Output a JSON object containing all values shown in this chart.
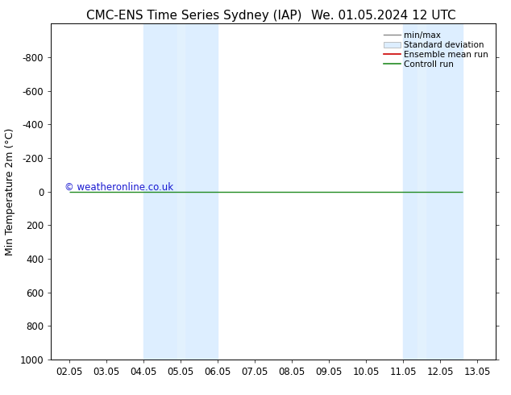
{
  "title_left": "CMC-ENS Time Series Sydney (IAP)",
  "title_right": "We. 01.05.2024 12 UTC",
  "ylabel": "Min Temperature 2m (°C)",
  "ylim": [
    -1000,
    1000
  ],
  "yticks": [
    -800,
    -600,
    -400,
    -200,
    0,
    200,
    400,
    600,
    800,
    1000
  ],
  "xtick_labels": [
    "02.05",
    "03.05",
    "04.05",
    "05.05",
    "06.05",
    "07.05",
    "08.05",
    "09.05",
    "10.05",
    "11.05",
    "12.05",
    "13.05"
  ],
  "xtick_positions": [
    0,
    1,
    2,
    3,
    4,
    5,
    6,
    7,
    8,
    9,
    10,
    11
  ],
  "shaded_bands": [
    [
      2.0,
      3.0
    ],
    [
      3.4,
      4.0
    ],
    [
      9.0,
      9.6
    ],
    [
      9.8,
      10.5
    ]
  ],
  "shade_color": "#ddeeff",
  "green_line_y": 0,
  "green_line_xstart": 0,
  "green_line_xend": 10.6,
  "green_line_color": "#228B22",
  "watermark": "© weatheronline.co.uk",
  "watermark_color": "#0000cc",
  "legend_labels": [
    "min/max",
    "Standard deviation",
    "Ensemble mean run",
    "Controll run"
  ],
  "legend_line_colors": [
    "#888888",
    "#cccccc",
    "#cc0000",
    "#228B22"
  ],
  "background_color": "#ffffff",
  "title_fontsize": 11,
  "tick_fontsize": 8.5,
  "ylabel_fontsize": 9
}
